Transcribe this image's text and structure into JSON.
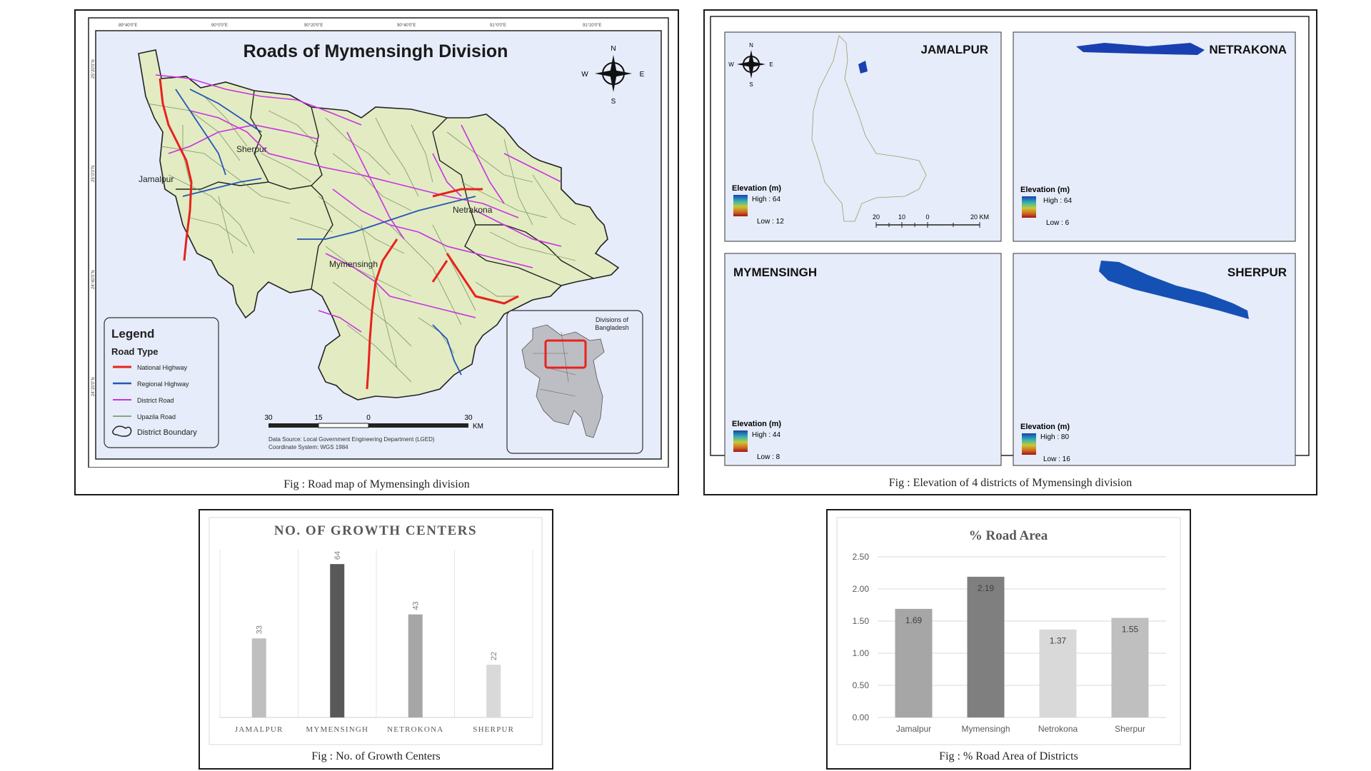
{
  "road_map": {
    "title": "Roads of Mymensingh Division",
    "caption": "Fig : Road map of Mymensingh division",
    "district_labels": [
      "Jamalpur",
      "Sherpur",
      "Netrakona",
      "Mymensingh"
    ],
    "legend": {
      "title": "Legend",
      "subtitle": "Road Type",
      "items": [
        {
          "label": "National Highway",
          "color": "#e8221b"
        },
        {
          "label": "Regional Highway",
          "color": "#2257b5"
        },
        {
          "label": "District Road",
          "color": "#c733e0"
        },
        {
          "label": "Upazila Road",
          "color": "#6e8f5a"
        },
        {
          "label": "District Boundary",
          "color": "#222222"
        }
      ]
    },
    "compass": {
      "n": "N",
      "s": "S",
      "e": "E",
      "w": "W"
    },
    "scale": {
      "ticks": [
        "30",
        "15",
        "0",
        "30"
      ],
      "unit": "KM"
    },
    "source_lines": [
      "Data Source: Local Government Engineering Department (LGED)",
      "Coordinate System: WGS 1984"
    ],
    "inset_title": [
      "Divisions of",
      "Bangladesh"
    ],
    "lon_ticks": [
      "89°40'0\"E",
      "90°0'0\"E",
      "90°20'0\"E",
      "90°40'0\"E",
      "91°0'0\"E",
      "91°20'0\"E"
    ],
    "lat_ticks": [
      "25°20'0\"N",
      "25°0'0\"N",
      "24°40'0\"N",
      "24°20'0\"N"
    ]
  },
  "elevation": {
    "caption": "Fig : Elevation of 4 districts of Mymensingh division",
    "legend_title": "Elevation (m)",
    "compass": {
      "n": "N",
      "s": "S",
      "e": "E",
      "w": "W"
    },
    "scale_ticks": [
      "20",
      "10",
      "0",
      "20 KM"
    ],
    "districts": [
      {
        "name": "JAMALPUR",
        "high": "High : 64",
        "low": "Low : 12"
      },
      {
        "name": "NETRAKONA",
        "high": "High : 64",
        "low": "Low : 6"
      },
      {
        "name": "MYMENSINGH",
        "high": "High : 44",
        "low": "Low : 8"
      },
      {
        "name": "SHERPUR",
        "high": "High : 80",
        "low": "Low : 16"
      }
    ]
  },
  "growth_chart": {
    "caption": "Fig : No. of Growth Centers",
    "chart_data": {
      "type": "bar",
      "title": "NO. OF GROWTH CENTERS",
      "categories": [
        "JAMALPUR",
        "MYMENSINGH",
        "NETROKONA",
        "SHERPUR"
      ],
      "values": [
        33,
        64,
        43,
        22
      ],
      "ylim": [
        0,
        70
      ],
      "colors": [
        "#bfbfbf",
        "#595959",
        "#a6a6a6",
        "#d9d9d9"
      ],
      "grid": false
    }
  },
  "road_area_chart": {
    "caption": "Fig : % Road Area of Districts",
    "chart_data": {
      "type": "bar",
      "title": "% Road Area",
      "categories": [
        "Jamalpur",
        "Mymensingh",
        "Netrokona",
        "Sherpur"
      ],
      "values": [
        1.69,
        2.19,
        1.37,
        1.55
      ],
      "value_labels": [
        "1.69",
        "2.19",
        "1.37",
        "1.55"
      ],
      "yticks": [
        "0.00",
        "0.50",
        "1.00",
        "1.50",
        "2.00",
        "2.50"
      ],
      "ylim": [
        0,
        2.5
      ],
      "colors": [
        "#a6a6a6",
        "#7f7f7f",
        "#d9d9d9",
        "#bfbfbf"
      ],
      "grid": true
    }
  }
}
